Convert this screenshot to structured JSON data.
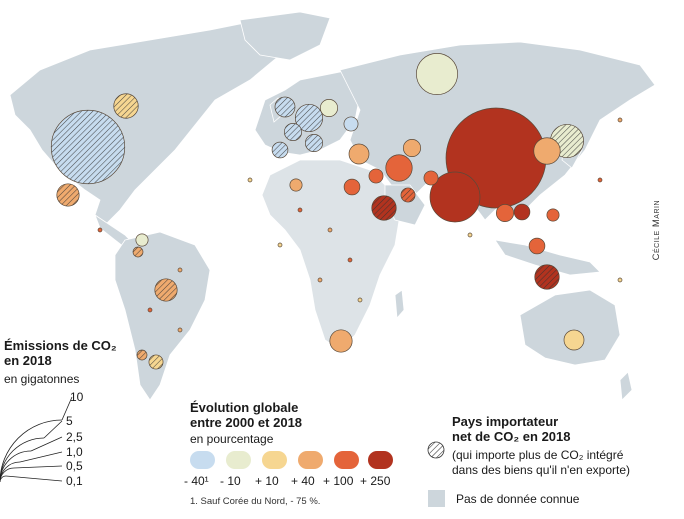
{
  "credit": "Cécile Marin",
  "colors": {
    "evo_m40": "#c7dcef",
    "evo_m10": "#e8eccf",
    "evo_p10": "#f6d691",
    "evo_p40": "#efaa6e",
    "evo_p100": "#e4643a",
    "evo_p250": "#b2331f",
    "land": "#cdd6dc"
  },
  "legend_size": {
    "title_line1": "Émissions de CO₂",
    "title_line2": "en 2018",
    "unit": "en gigatonnes",
    "values": [
      "10",
      "5",
      "2,5",
      "1,0",
      "0,5",
      "0,1"
    ]
  },
  "legend_evolution": {
    "title_line1": "Évolution globale",
    "title_line2": "entre 2000 et 2018",
    "unit": "en pourcentage",
    "labels": [
      "- 40¹",
      "- 10",
      "+ 10",
      "+ 40",
      "+ 100",
      "+ 250"
    ],
    "footnote": "1. Sauf Corée du Nord, - 75 %."
  },
  "legend_importer": {
    "title_line1": "Pays importateur",
    "title_line2": "net de CO₂ en 2018",
    "desc_line1": "(qui importe plus de CO₂ intégré",
    "desc_line2": "dans des biens qu'il n'en exporte)"
  },
  "legend_nodata": {
    "label": "Pas de donnée connue"
  },
  "bubbles": [
    {
      "name": "etats-unis",
      "v": 5.4,
      "cls": "m40",
      "imp": true
    },
    {
      "name": "chine",
      "v": 10.0,
      "cls": "p250",
      "imp": false
    },
    {
      "name": "inde",
      "v": 2.5,
      "cls": "p250",
      "imp": false
    },
    {
      "name": "russie",
      "v": 1.7,
      "cls": "m10",
      "imp": false
    },
    {
      "name": "japon",
      "v": 1.1,
      "cls": "m10",
      "imp": true
    },
    {
      "name": "coree-du-sud",
      "v": 0.7,
      "cls": "p40",
      "imp": false
    },
    {
      "name": "canada",
      "v": 0.6,
      "cls": "p10",
      "imp": true
    },
    {
      "name": "mexique",
      "v": 0.5,
      "cls": "p40",
      "imp": true
    },
    {
      "name": "bresil",
      "v": 0.5,
      "cls": "p40",
      "imp": true
    },
    {
      "name": "iran",
      "v": 0.7,
      "cls": "p100",
      "imp": false
    },
    {
      "name": "arabie-saoudite",
      "v": 0.6,
      "cls": "p250",
      "imp": true
    },
    {
      "name": "indonesie",
      "v": 0.6,
      "cls": "p250",
      "imp": true
    },
    {
      "name": "afrique-du-sud",
      "v": 0.5,
      "cls": "p40",
      "imp": false
    },
    {
      "name": "australie",
      "v": 0.4,
      "cls": "p10",
      "imp": false
    },
    {
      "name": "allemagne",
      "v": 0.75,
      "cls": "m40",
      "imp": true
    },
    {
      "name": "royaume-uni",
      "v": 0.4,
      "cls": "m40",
      "imp": true
    },
    {
      "name": "france",
      "v": 0.3,
      "cls": "m40",
      "imp": true
    },
    {
      "name": "turquie",
      "v": 0.4,
      "cls": "p40",
      "imp": false
    },
    {
      "name": "kazakhstan",
      "v": 0.3,
      "cls": "p40",
      "imp": false
    },
    {
      "name": "egypte",
      "v": 0.25,
      "cls": "p100",
      "imp": false
    },
    {
      "name": "pakistan",
      "v": 0.2,
      "cls": "p100",
      "imp": false
    },
    {
      "name": "thailande",
      "v": 0.3,
      "cls": "p100",
      "imp": false
    },
    {
      "name": "vietnam",
      "v": 0.25,
      "cls": "p250",
      "imp": false
    },
    {
      "name": "argentine",
      "v": 0.2,
      "cls": "p10",
      "imp": true
    },
    {
      "name": "pologne",
      "v": 0.3,
      "cls": "m10",
      "imp": false
    },
    {
      "name": "ukraine",
      "v": 0.2,
      "cls": "m40",
      "imp": false
    },
    {
      "name": "italie",
      "v": 0.3,
      "cls": "m40",
      "imp": true
    },
    {
      "name": "espagne",
      "v": 0.25,
      "cls": "m40",
      "imp": true
    },
    {
      "name": "algerie",
      "v": 0.15,
      "cls": "p40",
      "imp": false
    },
    {
      "name": "emirats",
      "v": 0.2,
      "cls": "p100",
      "imp": true
    },
    {
      "name": "irak",
      "v": 0.2,
      "cls": "p100",
      "imp": false
    },
    {
      "name": "malaisie",
      "v": 0.25,
      "cls": "p100",
      "imp": false
    },
    {
      "name": "philippines",
      "v": 0.15,
      "cls": "p100",
      "imp": false
    },
    {
      "name": "venezuela",
      "v": 0.15,
      "cls": "m10",
      "imp": false
    },
    {
      "name": "colombie",
      "v": 0.1,
      "cls": "p40",
      "imp": true
    },
    {
      "name": "chili",
      "v": 0.1,
      "cls": "p40",
      "imp": true
    }
  ]
}
